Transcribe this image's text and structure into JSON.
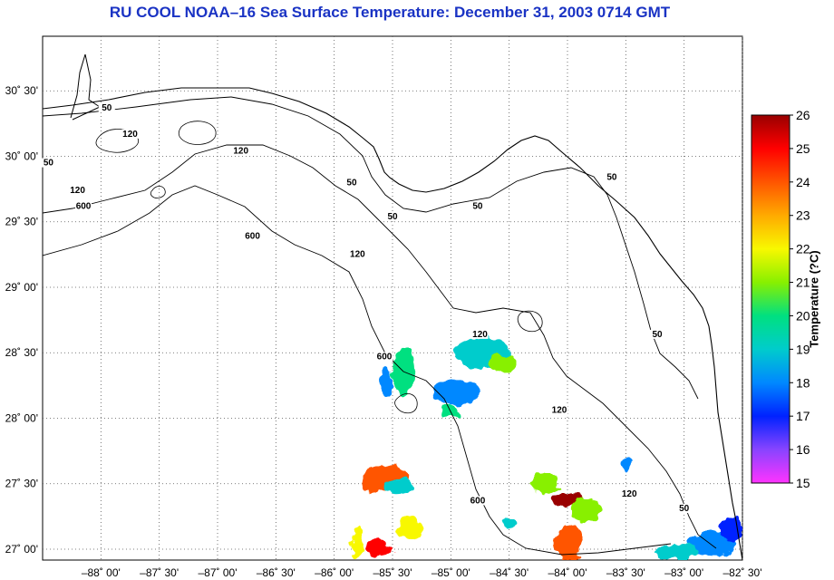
{
  "title": "RU COOL  NOAA–16  Sea Surface Temperature:  December 31, 2003 0714 GMT",
  "map": {
    "lon_range": [
      -88.5,
      -82.5
    ],
    "lat_range": [
      26.9167,
      30.9167
    ],
    "lat_ticks": [
      {
        "value": 30.5,
        "label": "30˚ 30'"
      },
      {
        "value": 30.0,
        "label": "30˚ 00'"
      },
      {
        "value": 29.5,
        "label": "29˚ 30'"
      },
      {
        "value": 29.0,
        "label": "29˚ 00'"
      },
      {
        "value": 28.5,
        "label": "28˚ 30'"
      },
      {
        "value": 28.0,
        "label": "28˚ 00'"
      },
      {
        "value": 27.5,
        "label": "27˚ 30'"
      },
      {
        "value": 27.0,
        "label": "27˚ 00'"
      }
    ],
    "lon_ticks": [
      {
        "value": -88.0,
        "label": "–88˚ 00'"
      },
      {
        "value": -87.5,
        "label": "–87˚ 30'"
      },
      {
        "value": -87.0,
        "label": "–87˚ 00'"
      },
      {
        "value": -86.5,
        "label": "–86˚ 30'"
      },
      {
        "value": -86.0,
        "label": "–86˚ 00'"
      },
      {
        "value": -85.5,
        "label": "–85˚ 30'"
      },
      {
        "value": -85.0,
        "label": "–85˚ 00'"
      },
      {
        "value": -84.5,
        "label": "–84˚ 30'"
      },
      {
        "value": -84.0,
        "label": "–84˚ 00'"
      },
      {
        "value": -83.5,
        "label": "–83˚ 30'"
      },
      {
        "value": -83.0,
        "label": "–83˚ 00'"
      },
      {
        "value": -82.5,
        "label": "–82˚ 30'"
      }
    ],
    "grid": "dotted",
    "contour_labels": [
      {
        "text": "50",
        "lon": -87.95,
        "lat": 30.35
      },
      {
        "text": "120",
        "lon": -87.75,
        "lat": 30.15
      },
      {
        "text": "120",
        "lon": -86.8,
        "lat": 30.02
      },
      {
        "text": "50",
        "lon": -88.45,
        "lat": 29.93
      },
      {
        "text": "120",
        "lon": -88.2,
        "lat": 29.72
      },
      {
        "text": "600",
        "lon": -88.15,
        "lat": 29.6
      },
      {
        "text": "50",
        "lon": -85.85,
        "lat": 29.78
      },
      {
        "text": "50",
        "lon": -85.5,
        "lat": 29.52
      },
      {
        "text": "50",
        "lon": -84.77,
        "lat": 29.6
      },
      {
        "text": "50",
        "lon": -83.62,
        "lat": 29.82
      },
      {
        "text": "600",
        "lon": -86.7,
        "lat": 29.37
      },
      {
        "text": "120",
        "lon": -85.8,
        "lat": 29.23
      },
      {
        "text": "120",
        "lon": -84.75,
        "lat": 28.62
      },
      {
        "text": "600",
        "lon": -85.57,
        "lat": 28.45
      },
      {
        "text": "50",
        "lon": -83.23,
        "lat": 28.62
      },
      {
        "text": "120",
        "lon": -84.07,
        "lat": 28.04
      },
      {
        "text": "600",
        "lon": -84.77,
        "lat": 27.35
      },
      {
        "text": "120",
        "lon": -83.47,
        "lat": 27.4
      },
      {
        "text": "50",
        "lon": -83.0,
        "lat": 27.29
      }
    ]
  },
  "colorbar": {
    "min": 15,
    "max": 26,
    "ticks": [
      "15",
      "16",
      "17",
      "18",
      "19",
      "20",
      "21",
      "22",
      "23",
      "24",
      "25",
      "26"
    ],
    "title": "Temperature (?C)",
    "colors": [
      "#ff33ff",
      "#8844ff",
      "#0022ff",
      "#0088ff",
      "#00cccc",
      "#00e080",
      "#88f000",
      "#f8f800",
      "#ffaa00",
      "#ff5500",
      "#ff0000",
      "#990000"
    ]
  },
  "sst_patches": [
    {
      "lon": -85.4,
      "lat": 28.35,
      "rx": 0.1,
      "ry": 0.18,
      "t": 19.5
    },
    {
      "lon": -85.55,
      "lat": 28.28,
      "rx": 0.05,
      "ry": 0.12,
      "t": 18.0
    },
    {
      "lon": -84.72,
      "lat": 28.5,
      "rx": 0.25,
      "ry": 0.12,
      "t": 19.0
    },
    {
      "lon": -84.55,
      "lat": 28.42,
      "rx": 0.12,
      "ry": 0.07,
      "t": 21.0
    },
    {
      "lon": -84.95,
      "lat": 28.2,
      "rx": 0.2,
      "ry": 0.1,
      "t": 17.5
    },
    {
      "lon": -85.0,
      "lat": 28.05,
      "rx": 0.08,
      "ry": 0.05,
      "t": 20.0
    },
    {
      "lon": -85.55,
      "lat": 27.55,
      "rx": 0.18,
      "ry": 0.1,
      "t": 23.5
    },
    {
      "lon": -85.45,
      "lat": 27.48,
      "rx": 0.12,
      "ry": 0.06,
      "t": 18.5
    },
    {
      "lon": -85.7,
      "lat": 27.5,
      "rx": 0.06,
      "ry": 0.08,
      "t": 24.0
    },
    {
      "lon": -85.35,
      "lat": 27.15,
      "rx": 0.1,
      "ry": 0.1,
      "t": 21.5
    },
    {
      "lon": -85.62,
      "lat": 27.0,
      "rx": 0.12,
      "ry": 0.06,
      "t": 24.5
    },
    {
      "lon": -85.8,
      "lat": 27.05,
      "rx": 0.05,
      "ry": 0.12,
      "t": 22.5
    },
    {
      "lon": -84.2,
      "lat": 27.5,
      "rx": 0.12,
      "ry": 0.08,
      "t": 20.5
    },
    {
      "lon": -84.0,
      "lat": 27.38,
      "rx": 0.15,
      "ry": 0.05,
      "t": 25.5
    },
    {
      "lon": -83.85,
      "lat": 27.3,
      "rx": 0.12,
      "ry": 0.1,
      "t": 21.0
    },
    {
      "lon": -84.0,
      "lat": 27.05,
      "rx": 0.12,
      "ry": 0.13,
      "t": 23.5
    },
    {
      "lon": -84.5,
      "lat": 27.2,
      "rx": 0.05,
      "ry": 0.05,
      "t": 19.0
    },
    {
      "lon": -83.5,
      "lat": 27.65,
      "rx": 0.04,
      "ry": 0.05,
      "t": 18.0
    },
    {
      "lon": -82.75,
      "lat": 27.05,
      "rx": 0.2,
      "ry": 0.1,
      "t": 17.5
    },
    {
      "lon": -82.6,
      "lat": 27.15,
      "rx": 0.1,
      "ry": 0.1,
      "t": 16.8
    },
    {
      "lon": -83.05,
      "lat": 26.98,
      "rx": 0.2,
      "ry": 0.06,
      "t": 18.5
    }
  ]
}
